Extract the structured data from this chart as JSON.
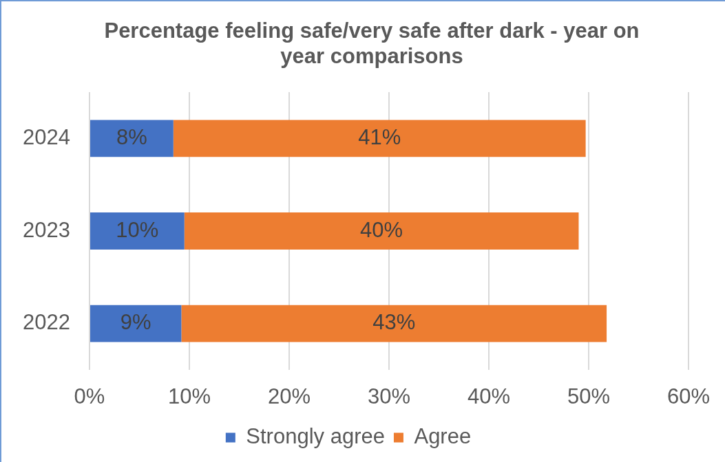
{
  "chart_data": {
    "type": "bar",
    "orientation": "horizontal",
    "stacked": true,
    "title": "Percentage feeling safe/very safe after dark - year on year comparisons",
    "categories": [
      "2024",
      "2023",
      "2022"
    ],
    "series": [
      {
        "name": "Strongly agree",
        "color": "#4472c4",
        "values": [
          8.4,
          9.5,
          9.2
        ],
        "value_labels": [
          "8%",
          "10%",
          "9%"
        ]
      },
      {
        "name": "Agree",
        "color": "#ed7d31",
        "values": [
          41.3,
          39.5,
          42.6
        ],
        "value_labels": [
          "41%",
          "40%",
          "43%"
        ]
      }
    ],
    "xlim": [
      0,
      60
    ],
    "xticks": [
      {
        "value": 0,
        "label": "0%"
      },
      {
        "value": 10,
        "label": "10%"
      },
      {
        "value": 20,
        "label": "20%"
      },
      {
        "value": 30,
        "label": "30%"
      },
      {
        "value": 40,
        "label": "40%"
      },
      {
        "value": 50,
        "label": "50%"
      },
      {
        "value": 60,
        "label": "60%"
      }
    ],
    "grid": "x",
    "legend": "bottom"
  }
}
